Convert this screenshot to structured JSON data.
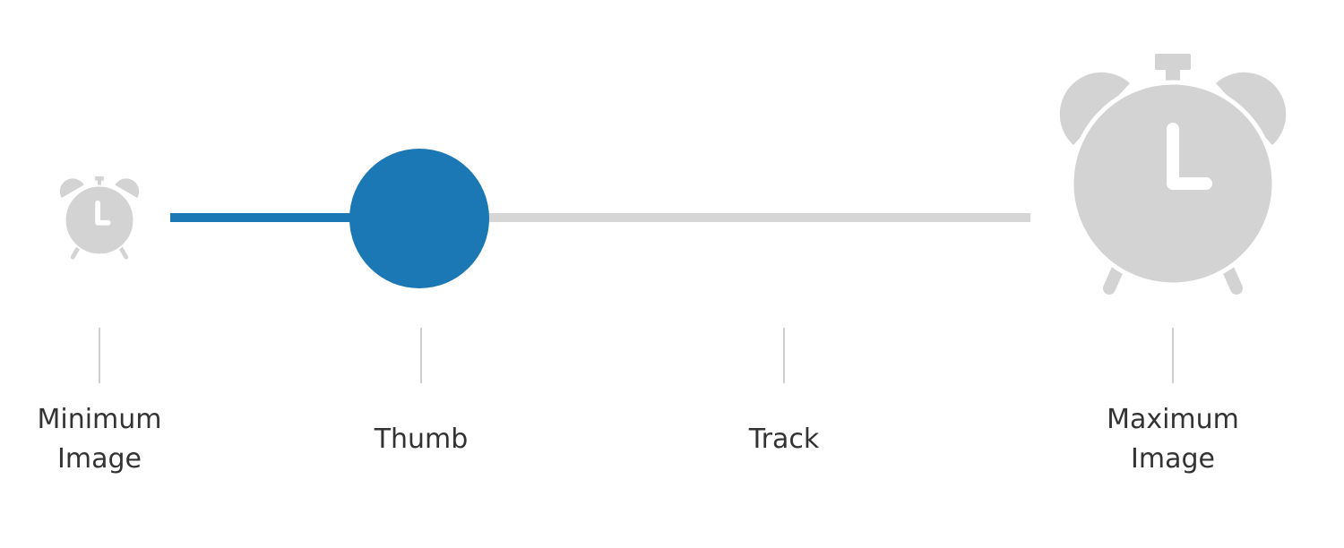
{
  "slider": {
    "value_fraction": 0.29,
    "fill_color": "#1c78b5",
    "track_color": "#d6d6d6",
    "icon_color": "#d3d3d3"
  },
  "icons": {
    "minimum": "alarm-clock-icon",
    "maximum": "alarm-clock-icon"
  },
  "labels": {
    "minimum_image": "Minimum\nImage",
    "thumb": "Thumb",
    "track": "Track",
    "maximum_image": "Maximum\nImage"
  }
}
